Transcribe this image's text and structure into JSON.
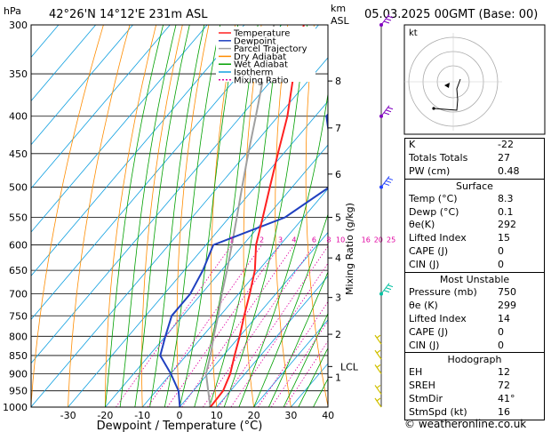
{
  "header": {
    "hpa_label": "hPa",
    "location": "42°26'N  14°12'E  231m  ASL",
    "km_label": "km",
    "asl_label": "ASL",
    "datetime": "05.03.2025  00GMT  (Base: 00)"
  },
  "legend": [
    {
      "label": "Temperature",
      "color": "#ff2020",
      "dash": ""
    },
    {
      "label": "Dewpoint",
      "color": "#2040c0",
      "dash": ""
    },
    {
      "label": "Parcel Trajectory",
      "color": "#a0a0a0",
      "dash": ""
    },
    {
      "label": "Dry Adiabat",
      "color": "#ff8c00",
      "dash": ""
    },
    {
      "label": "Wet Adiabat",
      "color": "#00a000",
      "dash": ""
    },
    {
      "label": "Isotherm",
      "color": "#10a0e0",
      "dash": ""
    },
    {
      "label": "Mixing Ratio",
      "color": "#e000a0",
      "dash": "2,2"
    }
  ],
  "chart_data": {
    "type": "skew-t",
    "xlabel": "Dewpoint / Temperature (°C)",
    "ylabel": "hPa",
    "y2label": "Mixing Ratio (g/kg)",
    "pressure_levels": [
      300,
      350,
      400,
      450,
      500,
      550,
      600,
      650,
      700,
      750,
      800,
      850,
      900,
      950,
      1000
    ],
    "temperature_ticks": [
      -30,
      -20,
      -10,
      0,
      10,
      20,
      30,
      40
    ],
    "km_ticks": [
      {
        "km": "1",
        "p": 910
      },
      {
        "km": "2",
        "p": 795
      },
      {
        "km": "3",
        "p": 708
      },
      {
        "km": "4",
        "p": 625
      },
      {
        "km": "5",
        "p": 550
      },
      {
        "km": "6",
        "p": 480
      },
      {
        "km": "7",
        "p": 415
      },
      {
        "km": "8",
        "p": 358
      }
    ],
    "lcl": {
      "label": "LCL",
      "p": 880
    },
    "mixing_ratio_labels": [
      "1",
      "2",
      "3",
      "4",
      "6",
      "8",
      "10",
      "16",
      "20",
      "25"
    ],
    "mixing_ratio_values": [
      1,
      2,
      3,
      4,
      6,
      8,
      10,
      16,
      20,
      25
    ],
    "temperature_profile": [
      {
        "p": 1000,
        "t": 8.3
      },
      {
        "p": 950,
        "t": 8.0
      },
      {
        "p": 900,
        "t": 6.0
      },
      {
        "p": 850,
        "t": 3.0
      },
      {
        "p": 800,
        "t": 0.0
      },
      {
        "p": 750,
        "t": -3.5
      },
      {
        "p": 700,
        "t": -7.0
      },
      {
        "p": 650,
        "t": -11.0
      },
      {
        "p": 600,
        "t": -16.5
      },
      {
        "p": 550,
        "t": -21.0
      },
      {
        "p": 500,
        "t": -26.0
      },
      {
        "p": 450,
        "t": -31.5
      },
      {
        "p": 400,
        "t": -37.5
      },
      {
        "p": 350,
        "t": -45.5
      },
      {
        "p": 300,
        "t": -54.0
      }
    ],
    "dewpoint_profile": [
      {
        "p": 1000,
        "t": 0.1
      },
      {
        "p": 950,
        "t": -4.0
      },
      {
        "p": 900,
        "t": -10.0
      },
      {
        "p": 850,
        "t": -17.0
      },
      {
        "p": 800,
        "t": -20.0
      },
      {
        "p": 750,
        "t": -23.0
      },
      {
        "p": 700,
        "t": -23.0
      },
      {
        "p": 650,
        "t": -25.0
      },
      {
        "p": 600,
        "t": -28.0
      },
      {
        "p": 550,
        "t": -15.0
      },
      {
        "p": 500,
        "t": -10.0
      },
      {
        "p": 450,
        "t": -17.0
      },
      {
        "p": 400,
        "t": -27.0
      },
      {
        "p": 350,
        "t": -26.0
      },
      {
        "p": 300,
        "t": -27.0
      }
    ],
    "parcel_profile": [
      {
        "p": 1000,
        "t": 8.3
      },
      {
        "p": 950,
        "t": 4.0
      },
      {
        "p": 900,
        "t": -0.5
      },
      {
        "p": 850,
        "t": -3.5
      },
      {
        "p": 800,
        "t": -7.0
      },
      {
        "p": 750,
        "t": -10.5
      },
      {
        "p": 700,
        "t": -14.5
      },
      {
        "p": 650,
        "t": -18.5
      },
      {
        "p": 600,
        "t": -23.0
      },
      {
        "p": 550,
        "t": -28.0
      },
      {
        "p": 500,
        "t": -33.5
      },
      {
        "p": 450,
        "t": -39.5
      },
      {
        "p": 400,
        "t": -46.0
      },
      {
        "p": 350,
        "t": -53.5
      },
      {
        "p": 300,
        "t": -62.0
      }
    ],
    "grid": true
  },
  "hodograph": {
    "unit_label": "kt"
  },
  "stats": {
    "top": [
      {
        "label": "K",
        "value": "-22"
      },
      {
        "label": "Totals Totals",
        "value": "27"
      },
      {
        "label": "PW (cm)",
        "value": "0.48"
      }
    ],
    "surface_title": "Surface",
    "surface": [
      {
        "label": "Temp (°C)",
        "value": "8.3"
      },
      {
        "label": "Dewp (°C)",
        "value": "0.1"
      },
      {
        "label": "θe(K)",
        "value": "292"
      },
      {
        "label": "Lifted Index",
        "value": "15"
      },
      {
        "label": "CAPE (J)",
        "value": "0"
      },
      {
        "label": "CIN (J)",
        "value": "0"
      }
    ],
    "unstable_title": "Most Unstable",
    "unstable": [
      {
        "label": "Pressure (mb)",
        "value": "750"
      },
      {
        "label": "θe (K)",
        "value": "299"
      },
      {
        "label": "Lifted Index",
        "value": "14"
      },
      {
        "label": "CAPE (J)",
        "value": "0"
      },
      {
        "label": "CIN (J)",
        "value": "0"
      }
    ],
    "hodo_title": "Hodograph",
    "hodo": [
      {
        "label": "EH",
        "value": "12"
      },
      {
        "label": "SREH",
        "value": "72"
      },
      {
        "label": "StmDir",
        "value": "41°"
      },
      {
        "label": "StmSpd (kt)",
        "value": "16"
      }
    ]
  },
  "credit": "© weatheronline.co.uk"
}
